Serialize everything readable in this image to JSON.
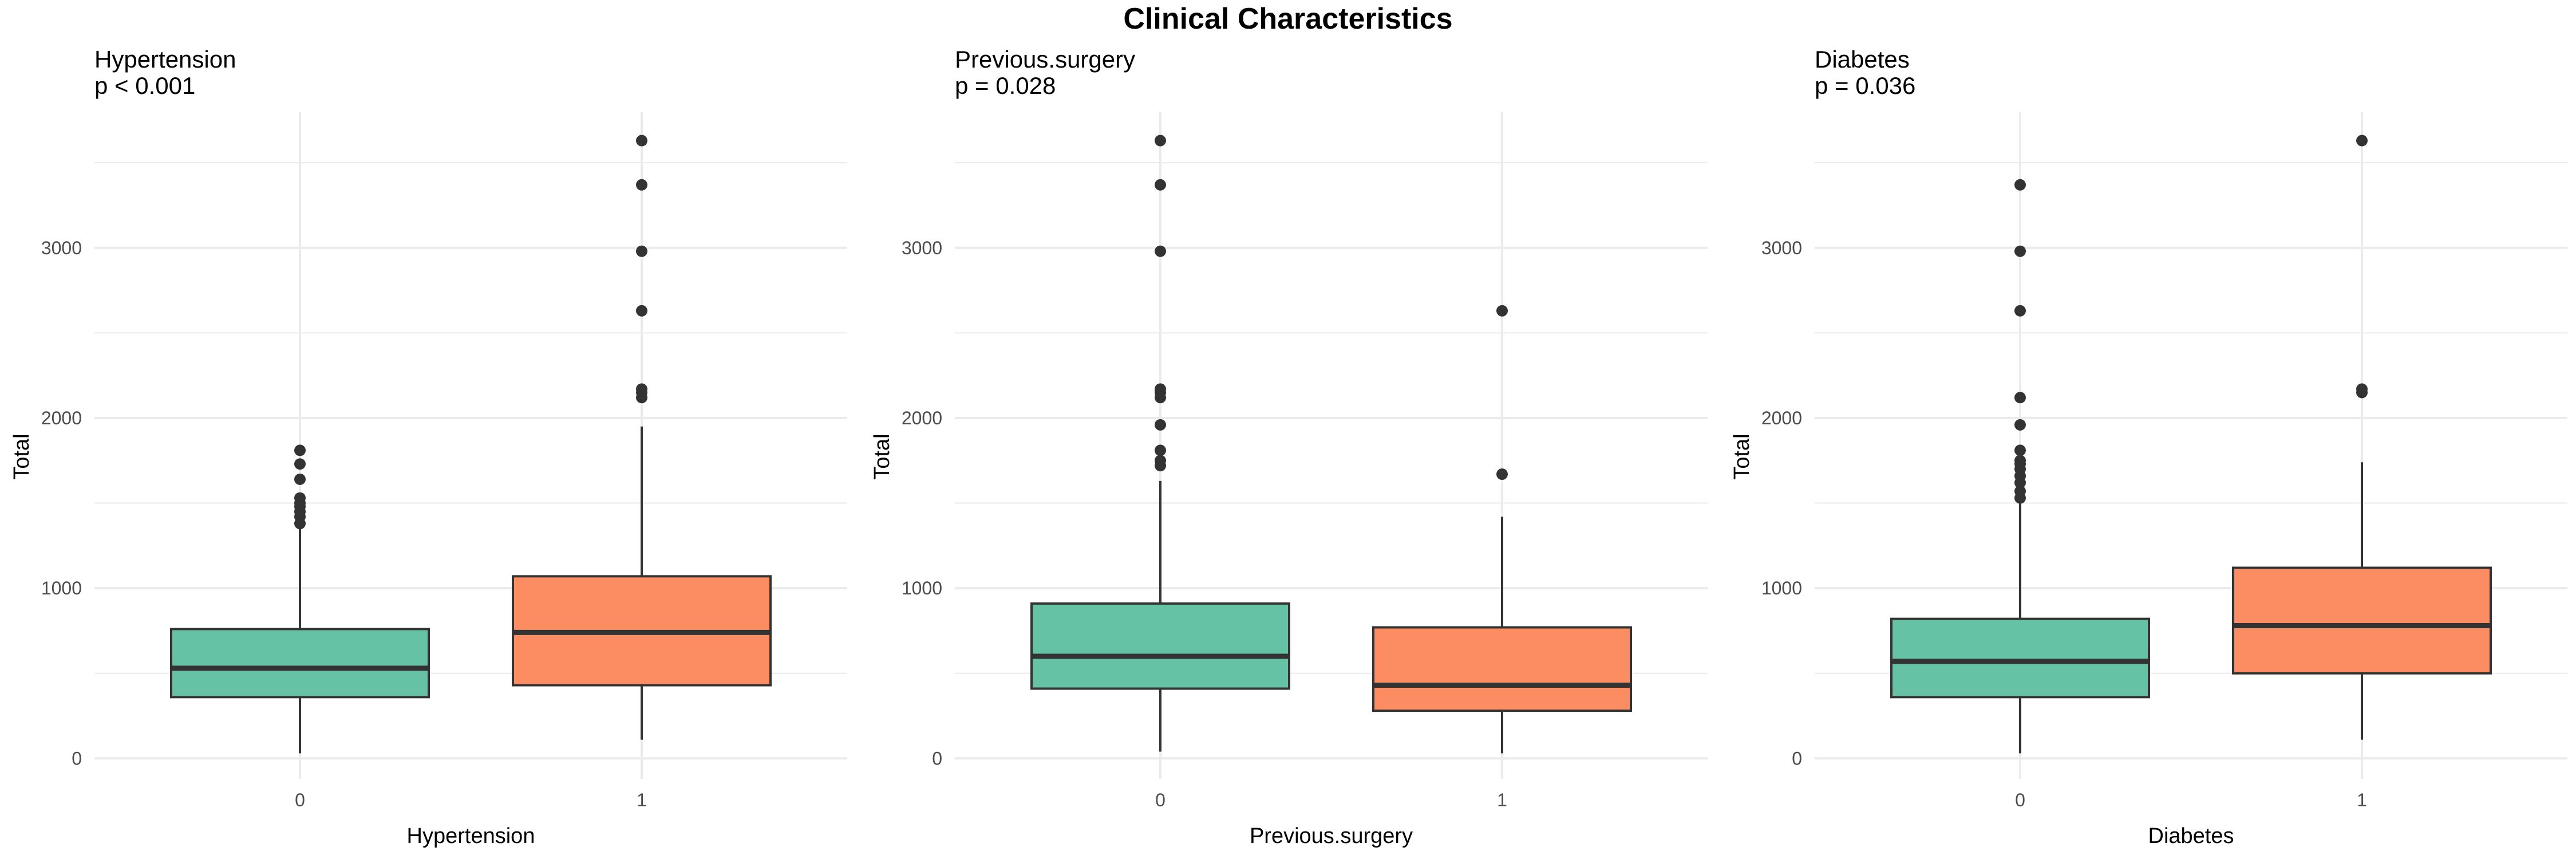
{
  "suptitle": "Clinical Characteristics",
  "colors": {
    "group0": "#66C2A5",
    "group1": "#FC8D62",
    "stroke": "#333333",
    "grid": "#EBEBEB"
  },
  "chart_data": [
    {
      "type": "box",
      "title": "Hypertension",
      "subtitle": "p < 0.001",
      "xlabel": "Hypertension",
      "ylabel": "Total",
      "categories": [
        "0",
        "1"
      ],
      "ylim": [
        -120,
        3800
      ],
      "yticks": [
        0,
        1000,
        2000,
        3000
      ],
      "grid": true,
      "boxes": [
        {
          "category": "0",
          "whisker_low": 30,
          "q1": 360,
          "median": 530,
          "q3": 760,
          "whisker_high": 1360,
          "outliers": [
            1380,
            1420,
            1450,
            1480,
            1500,
            1530,
            1640,
            1730,
            1810
          ]
        },
        {
          "category": "1",
          "whisker_low": 110,
          "q1": 430,
          "median": 740,
          "q3": 1070,
          "whisker_high": 1950,
          "outliers": [
            2120,
            2150,
            2170,
            2630,
            2980,
            3370,
            3630
          ]
        }
      ]
    },
    {
      "type": "box",
      "title": "Previous.surgery",
      "subtitle": "p = 0.028",
      "xlabel": "Previous.surgery",
      "ylabel": "Total",
      "categories": [
        "0",
        "1"
      ],
      "ylim": [
        -120,
        3800
      ],
      "yticks": [
        0,
        1000,
        2000,
        3000
      ],
      "grid": true,
      "boxes": [
        {
          "category": "0",
          "whisker_low": 40,
          "q1": 410,
          "median": 600,
          "q3": 910,
          "whisker_high": 1630,
          "outliers": [
            1720,
            1750,
            1810,
            1960,
            2120,
            2150,
            2170,
            2980,
            3370,
            3630
          ]
        },
        {
          "category": "1",
          "whisker_low": 30,
          "q1": 280,
          "median": 430,
          "q3": 770,
          "whisker_high": 1420,
          "outliers": [
            1670,
            2630
          ]
        }
      ]
    },
    {
      "type": "box",
      "title": "Diabetes",
      "subtitle": "p = 0.036",
      "xlabel": "Diabetes",
      "ylabel": "Total",
      "categories": [
        "0",
        "1"
      ],
      "ylim": [
        -120,
        3800
      ],
      "yticks": [
        0,
        1000,
        2000,
        3000
      ],
      "grid": true,
      "boxes": [
        {
          "category": "0",
          "whisker_low": 30,
          "q1": 360,
          "median": 570,
          "q3": 820,
          "whisker_high": 1500,
          "outliers": [
            1530,
            1570,
            1620,
            1660,
            1700,
            1730,
            1750,
            1810,
            1960,
            2120,
            2630,
            2980,
            3370
          ]
        },
        {
          "category": "1",
          "whisker_low": 110,
          "q1": 500,
          "median": 780,
          "q3": 1120,
          "whisker_high": 1740,
          "outliers": [
            2150,
            2170,
            3630
          ]
        }
      ]
    }
  ]
}
